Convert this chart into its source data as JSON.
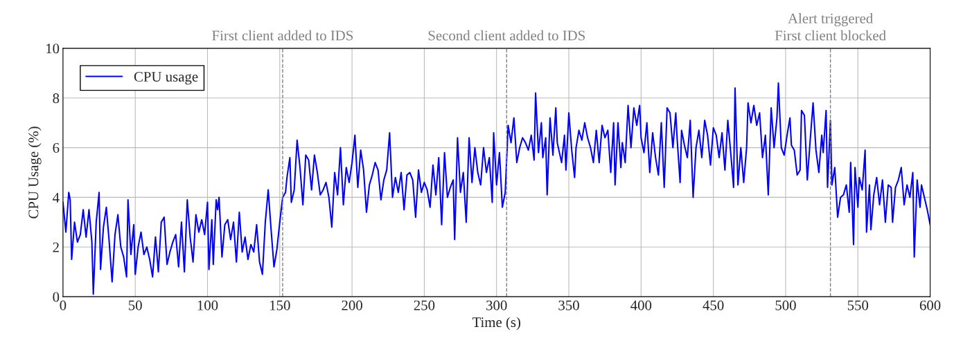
{
  "chart_data": {
    "type": "line",
    "xlabel": "Time (s)",
    "ylabel": "CPU Usage (%)",
    "xlim": [
      0,
      600
    ],
    "ylim": [
      0,
      10
    ],
    "xticks": [
      0,
      50,
      100,
      150,
      200,
      250,
      300,
      350,
      400,
      450,
      500,
      550,
      600
    ],
    "yticks": [
      0,
      2,
      4,
      6,
      8,
      10
    ],
    "grid": true,
    "legend": "top left",
    "line_style": "solid",
    "ref_lines": [
      {
        "axis": "x",
        "value": 152,
        "label": "First client added to IDS",
        "color": "#808080",
        "line_style": "dashed"
      },
      {
        "axis": "x",
        "value": 307,
        "label": "Second client added to IDS",
        "color": "#808080",
        "line_style": "dashed"
      },
      {
        "axis": "x",
        "value": 531,
        "label": "Alert triggered\nFirst client blocked",
        "color": "#808080",
        "line_style": "dashed"
      }
    ],
    "series": [
      {
        "name": "CPU usage",
        "color": "#0000ff",
        "x": [
          0,
          2,
          4,
          5,
          6,
          8,
          10,
          12,
          14,
          16,
          18,
          20,
          21,
          23,
          25,
          26,
          28,
          30,
          32,
          34,
          36,
          38,
          40,
          42,
          44,
          45,
          47,
          49,
          50,
          52,
          54,
          56,
          58,
          60,
          62,
          64,
          66,
          68,
          70,
          72,
          74,
          76,
          78,
          80,
          82,
          84,
          86,
          88,
          90,
          92,
          94,
          96,
          98,
          100,
          101,
          103,
          104,
          106,
          107,
          108,
          110,
          112,
          114,
          116,
          118,
          120,
          122,
          124,
          126,
          128,
          130,
          132,
          134,
          136,
          138,
          140,
          142,
          144,
          146,
          148,
          150,
          152,
          154,
          155,
          157,
          158,
          160,
          162,
          164,
          166,
          168,
          170,
          172,
          174,
          176,
          178,
          180,
          182,
          184,
          186,
          188,
          190,
          192,
          194,
          196,
          198,
          200,
          202,
          204,
          206,
          208,
          210,
          212,
          214,
          216,
          218,
          220,
          222,
          224,
          226,
          228,
          230,
          232,
          234,
          236,
          238,
          240,
          242,
          244,
          246,
          248,
          250,
          252,
          254,
          256,
          258,
          260,
          262,
          264,
          266,
          268,
          270,
          271,
          273,
          275,
          277,
          279,
          281,
          283,
          285,
          287,
          289,
          291,
          293,
          295,
          297,
          298,
          300,
          302,
          304,
          306,
          308,
          310,
          312,
          314,
          316,
          318,
          320,
          322,
          324,
          326,
          327,
          329,
          331,
          332,
          334,
          335,
          337,
          339,
          341,
          342,
          345,
          347,
          348,
          350,
          352,
          354,
          355,
          357,
          359,
          361,
          363,
          365,
          367,
          369,
          371,
          373,
          375,
          377,
          379,
          381,
          382,
          384,
          386,
          387,
          389,
          391,
          393,
          395,
          397,
          399,
          400,
          402,
          404,
          406,
          408,
          410,
          412,
          414,
          416,
          418,
          420,
          422,
          424,
          425,
          427,
          428,
          430,
          432,
          434,
          436,
          438,
          440,
          442,
          444,
          446,
          448,
          450,
          452,
          454,
          456,
          458,
          460,
          462,
          464,
          465,
          467,
          469,
          471,
          473,
          474,
          476,
          478,
          480,
          482,
          484,
          486,
          488,
          490,
          492,
          494,
          495,
          497,
          499,
          501,
          503,
          504,
          506,
          508,
          510,
          511,
          513,
          515,
          517,
          519,
          521,
          523,
          525,
          526,
          528,
          529,
          531,
          532,
          534,
          536,
          538,
          540,
          542,
          544,
          545,
          546,
          547,
          548,
          550,
          551,
          553,
          555,
          556,
          558,
          559,
          561,
          563,
          565,
          567,
          569,
          571,
          573,
          574,
          576,
          578,
          580,
          582,
          584,
          586,
          588,
          589,
          591,
          593,
          594,
          596,
          598,
          600
        ],
        "values": [
          3.8,
          2.6,
          4.2,
          3.9,
          1.5,
          3.0,
          2.2,
          2.5,
          3.5,
          2.4,
          3.5,
          2.2,
          0.1,
          3.0,
          4.2,
          1.1,
          2.8,
          3.6,
          2.2,
          0.6,
          2.5,
          3.3,
          2.0,
          1.6,
          0.8,
          3.9,
          1.7,
          2.9,
          0.9,
          2.0,
          2.6,
          1.7,
          2.0,
          1.5,
          0.8,
          2.4,
          1.0,
          3.0,
          3.2,
          1.3,
          1.8,
          2.2,
          2.5,
          1.2,
          3.0,
          1.0,
          3.9,
          2.4,
          1.4,
          3.3,
          2.6,
          3.1,
          2.5,
          3.8,
          1.1,
          3.1,
          1.3,
          3.9,
          3.5,
          4.0,
          1.6,
          2.9,
          3.1,
          2.3,
          3.0,
          1.4,
          3.4,
          1.8,
          2.4,
          1.5,
          2.1,
          1.8,
          2.9,
          1.4,
          0.9,
          3.0,
          4.3,
          2.7,
          1.2,
          1.9,
          3.0,
          4.0,
          4.2,
          4.8,
          5.6,
          3.8,
          4.3,
          6.3,
          5.2,
          3.7,
          5.7,
          5.5,
          4.3,
          5.7,
          5.0,
          4.1,
          4.3,
          4.6,
          4.0,
          2.8,
          5.0,
          4.1,
          6.0,
          3.7,
          5.2,
          4.6,
          5.4,
          6.5,
          4.4,
          5.9,
          5.1,
          3.4,
          4.5,
          4.9,
          5.4,
          5.1,
          3.9,
          4.7,
          5.1,
          6.6,
          4.0,
          4.8,
          4.2,
          5.0,
          3.5,
          4.9,
          5.0,
          4.7,
          3.2,
          5.1,
          4.2,
          4.6,
          4.3,
          3.6,
          5.3,
          4.1,
          5.6,
          2.9,
          5.8,
          4.0,
          4.4,
          4.7,
          2.3,
          6.4,
          4.2,
          5.0,
          3.0,
          6.4,
          4.6,
          6.0,
          5.0,
          4.5,
          6.0,
          5.0,
          5.6,
          3.8,
          6.6,
          4.5,
          5.8,
          3.6,
          4.2,
          6.9,
          6.2,
          7.2,
          5.4,
          6.0,
          6.4,
          6.2,
          5.9,
          6.5,
          5.5,
          8.2,
          5.8,
          7.0,
          5.6,
          6.4,
          4.1,
          7.2,
          5.7,
          7.6,
          6.2,
          5.4,
          6.5,
          5.1,
          7.4,
          5.9,
          4.8,
          6.0,
          6.7,
          6.3,
          7.0,
          6.4,
          6.0,
          5.4,
          6.7,
          5.4,
          6.9,
          6.4,
          6.7,
          5.0,
          7.0,
          4.5,
          7.0,
          5.2,
          6.2,
          5.4,
          7.7,
          6.0,
          7.6,
          6.9,
          7.7,
          6.4,
          5.8,
          7.0,
          5.0,
          6.6,
          5.6,
          4.9,
          7.0,
          4.4,
          7.6,
          7.4,
          6.0,
          7.4,
          6.3,
          4.6,
          6.7,
          6.1,
          5.6,
          7.1,
          4.0,
          6.0,
          6.7,
          5.6,
          7.1,
          6.5,
          5.3,
          6.8,
          6.5,
          5.6,
          6.6,
          5.1,
          7.1,
          5.8,
          4.4,
          8.4,
          4.5,
          6.0,
          4.6,
          6.0,
          7.8,
          7.0,
          7.7,
          6.9,
          7.4,
          5.6,
          6.5,
          4.1,
          7.6,
          6.0,
          7.2,
          8.6,
          6.0,
          5.7,
          6.5,
          7.2,
          6.1,
          5.9,
          4.9,
          5.1,
          7.5,
          7.3,
          4.7,
          6.3,
          7.8,
          5.9,
          5.0,
          6.5,
          5.8,
          7.5,
          4.4,
          7.1,
          4.5,
          5.2,
          3.2,
          4.0,
          4.1,
          4.5,
          3.4,
          5.4,
          3.8,
          2.1,
          5.2,
          3.6,
          4.8,
          4.3,
          5.9,
          2.6,
          4.5,
          2.7,
          4.1,
          4.8,
          3.7,
          4.7,
          3.0,
          4.5,
          4.4,
          3.0,
          4.4,
          4.7,
          5.2,
          3.7,
          4.5,
          4.0,
          5.0,
          1.6,
          4.7,
          3.6,
          4.5,
          4.0,
          3.5,
          2.9
        ]
      }
    ]
  }
}
